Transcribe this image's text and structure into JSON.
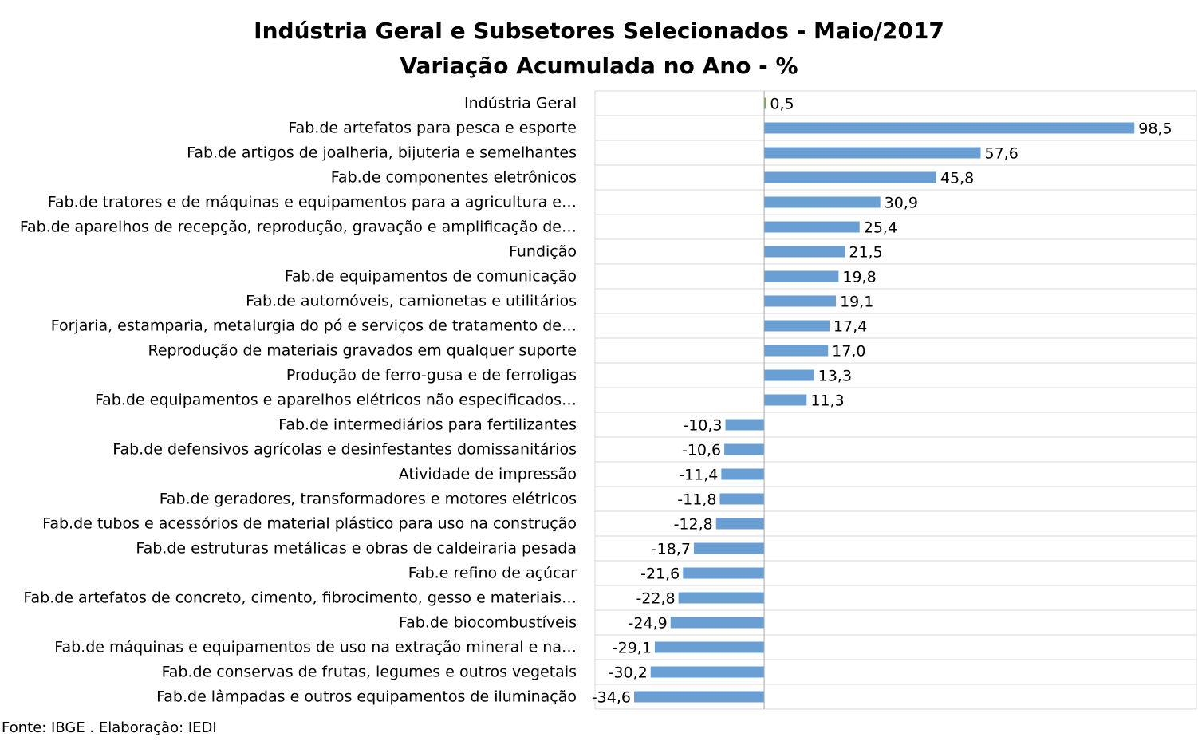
{
  "chart_data": {
    "type": "bar",
    "orientation": "horizontal",
    "title": "Indústria Geral e Subsetores Selecionados - Maio/2017",
    "subtitle": "Variação Acumulada no Ano - %",
    "categories": [
      "Indústria Geral",
      "Fab.de artefatos para pesca e esporte",
      "Fab.de artigos de joalheria, bijuteria e semelhantes",
      "Fab.de componentes eletrônicos",
      "Fab.de tratores e de máquinas e equipamentos para a agricultura e…",
      "Fab.de aparelhos de recepção, reprodução, gravação e amplificação de…",
      "Fundição",
      "Fab.de equipamentos de comunicação",
      "Fab.de automóveis, camionetas e utilitários",
      "Forjaria, estamparia, metalurgia do pó e serviços de tratamento de…",
      "Reprodução de materiais gravados em qualquer suporte",
      "Produção de ferro-gusa e de ferroligas",
      "Fab.de equipamentos e aparelhos elétricos não especificados…",
      "Fab.de intermediários para fertilizantes",
      "Fab.de defensivos agrícolas e desinfestantes domissanitários",
      "Atividade de impressão",
      "Fab.de geradores, transformadores e motores elétricos",
      "Fab.de tubos e acessórios de material plástico para uso na construção",
      "Fab.de estruturas metálicas e obras de caldeiraria pesada",
      "Fab.e refino de açúcar",
      "Fab.de artefatos de concreto, cimento, fibrocimento, gesso e materiais…",
      "Fab.de biocombustíveis",
      "Fab.de máquinas e equipamentos de uso na extração mineral e na…",
      "Fab.de conservas de frutas, legumes e outros vegetais",
      "Fab.de lâmpadas e outros equipamentos de iluminação"
    ],
    "values": [
      0.5,
      98.5,
      57.6,
      45.8,
      30.9,
      25.4,
      21.5,
      19.8,
      19.1,
      17.4,
      17.0,
      13.3,
      11.3,
      -10.3,
      -10.6,
      -11.4,
      -11.8,
      -12.8,
      -18.7,
      -21.6,
      -22.8,
      -24.9,
      -29.1,
      -30.2,
      -34.6
    ],
    "value_labels": [
      "0,5",
      "98,5",
      "57,6",
      "45,8",
      "30,9",
      "25,4",
      "21,5",
      "19,8",
      "19,1",
      "17,4",
      "17,0",
      "13,3",
      "11,3",
      "-10,3",
      "-10,6",
      "-11,4",
      "-11,8",
      "-12,8",
      "-18,7",
      "-21,6",
      "-22,8",
      "-24,9",
      "-29,1",
      "-30,2",
      "-34,6"
    ],
    "xlim": [
      -45,
      115
    ],
    "colors": {
      "highlight": "#70ad47",
      "default": "#6a9fd4",
      "grid": "#d9d9d9",
      "axis": "#a6a6a6"
    },
    "highlight_index": 0,
    "grid": true,
    "legend": "none"
  },
  "source": "Fonte: IBGE . Elaboração: IEDI"
}
